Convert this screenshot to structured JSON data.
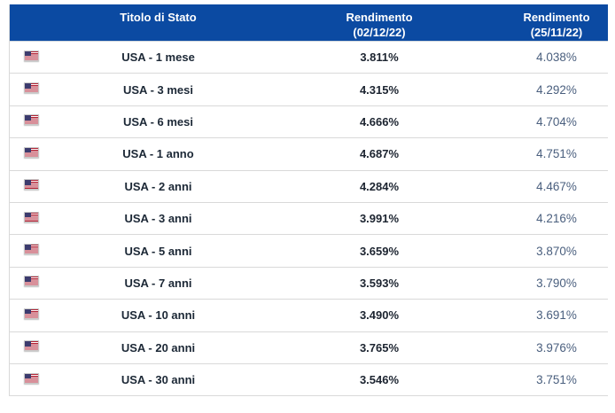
{
  "header": {
    "bond_label": "Titolo di Stato",
    "yield_current_line1": "Rendimento",
    "yield_current_line2": "(02/12/22)",
    "yield_previous_line1": "Rendimento",
    "yield_previous_line2": "(25/11/22)"
  },
  "colors": {
    "header_bg": "#0b4aa2",
    "header_text": "#ffffff",
    "bond_name_text": "#1c2836",
    "yield_current_text": "#1c2430",
    "yield_previous_text": "#4a5f7e",
    "row_divider": "#d9d9d9",
    "flag_red": "#b22234",
    "flag_blue": "#3c3b6e"
  },
  "icons": {
    "row_icon": "usa-flag-icon"
  },
  "rows": [
    {
      "name": "USA - 1 mese",
      "current": "3.811%",
      "previous": "4.038%"
    },
    {
      "name": "USA - 3 mesi",
      "current": "4.315%",
      "previous": "4.292%"
    },
    {
      "name": "USA - 6 mesi",
      "current": "4.666%",
      "previous": "4.704%"
    },
    {
      "name": "USA - 1 anno",
      "current": "4.687%",
      "previous": "4.751%"
    },
    {
      "name": "USA - 2 anni",
      "current": "4.284%",
      "previous": "4.467%"
    },
    {
      "name": "USA - 3 anni",
      "current": "3.991%",
      "previous": "4.216%"
    },
    {
      "name": "USA - 5 anni",
      "current": "3.659%",
      "previous": "3.870%"
    },
    {
      "name": "USA - 7 anni",
      "current": "3.593%",
      "previous": "3.790%"
    },
    {
      "name": "USA - 10 anni",
      "current": "3.490%",
      "previous": "3.691%"
    },
    {
      "name": "USA - 20 anni",
      "current": "3.765%",
      "previous": "3.976%"
    },
    {
      "name": "USA - 30 anni",
      "current": "3.546%",
      "previous": "3.751%"
    }
  ],
  "chart_data": {
    "type": "table",
    "title": "",
    "columns": [
      "Titolo di Stato",
      "Rendimento (02/12/22)",
      "Rendimento (25/11/22)"
    ],
    "rows": [
      [
        "USA - 1 mese",
        "3.811%",
        "4.038%"
      ],
      [
        "USA - 3 mesi",
        "4.315%",
        "4.292%"
      ],
      [
        "USA - 6 mesi",
        "4.666%",
        "4.704%"
      ],
      [
        "USA - 1 anno",
        "4.687%",
        "4.751%"
      ],
      [
        "USA - 2 anni",
        "4.284%",
        "4.467%"
      ],
      [
        "USA - 3 anni",
        "3.991%",
        "4.216%"
      ],
      [
        "USA - 5 anni",
        "3.659%",
        "3.870%"
      ],
      [
        "USA - 7 anni",
        "3.593%",
        "3.790%"
      ],
      [
        "USA - 10 anni",
        "3.490%",
        "3.691%"
      ],
      [
        "USA - 20 anni",
        "3.765%",
        "3.976%"
      ],
      [
        "USA - 30 anni",
        "3.546%",
        "3.751%"
      ]
    ],
    "series": [
      {
        "name": "Rendimento (02/12/22)",
        "values": [
          3.811,
          4.315,
          4.666,
          4.687,
          4.284,
          3.991,
          3.659,
          3.593,
          3.49,
          3.765,
          3.546
        ]
      },
      {
        "name": "Rendimento (25/11/22)",
        "values": [
          4.038,
          4.292,
          4.704,
          4.751,
          4.467,
          4.216,
          3.87,
          3.79,
          3.691,
          3.976,
          3.751
        ]
      }
    ],
    "categories": [
      "USA - 1 mese",
      "USA - 3 mesi",
      "USA - 6 mesi",
      "USA - 1 anno",
      "USA - 2 anni",
      "USA - 3 anni",
      "USA - 5 anni",
      "USA - 7 anni",
      "USA - 10 anni",
      "USA - 20 anni",
      "USA - 30 anni"
    ]
  }
}
